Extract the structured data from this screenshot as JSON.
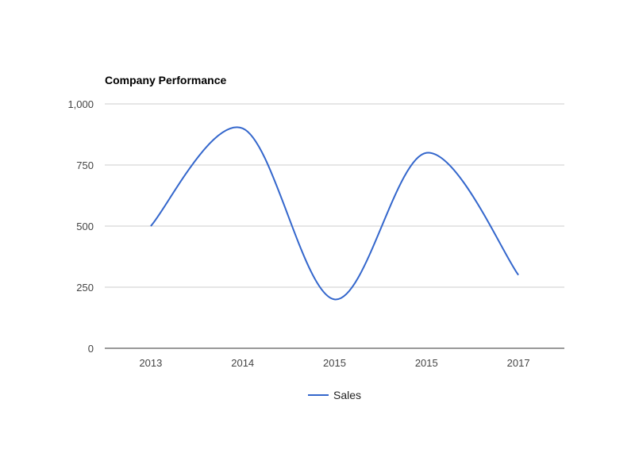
{
  "chart_data": {
    "type": "line",
    "title": "Company Performance",
    "xlabel": "",
    "ylabel": "",
    "categories": [
      "2013",
      "2014",
      "2015",
      "2015",
      "2017"
    ],
    "series": [
      {
        "name": "Sales",
        "values": [
          500,
          900,
          200,
          800,
          300
        ],
        "color": "#3366cc"
      }
    ],
    "ylim": [
      0,
      1000
    ],
    "yticks": [
      0,
      250,
      500,
      750,
      1000
    ],
    "ytick_labels": [
      "0",
      "250",
      "500",
      "750",
      "1,000"
    ],
    "grid": true,
    "curve": "smooth",
    "legend_position": "bottom"
  }
}
